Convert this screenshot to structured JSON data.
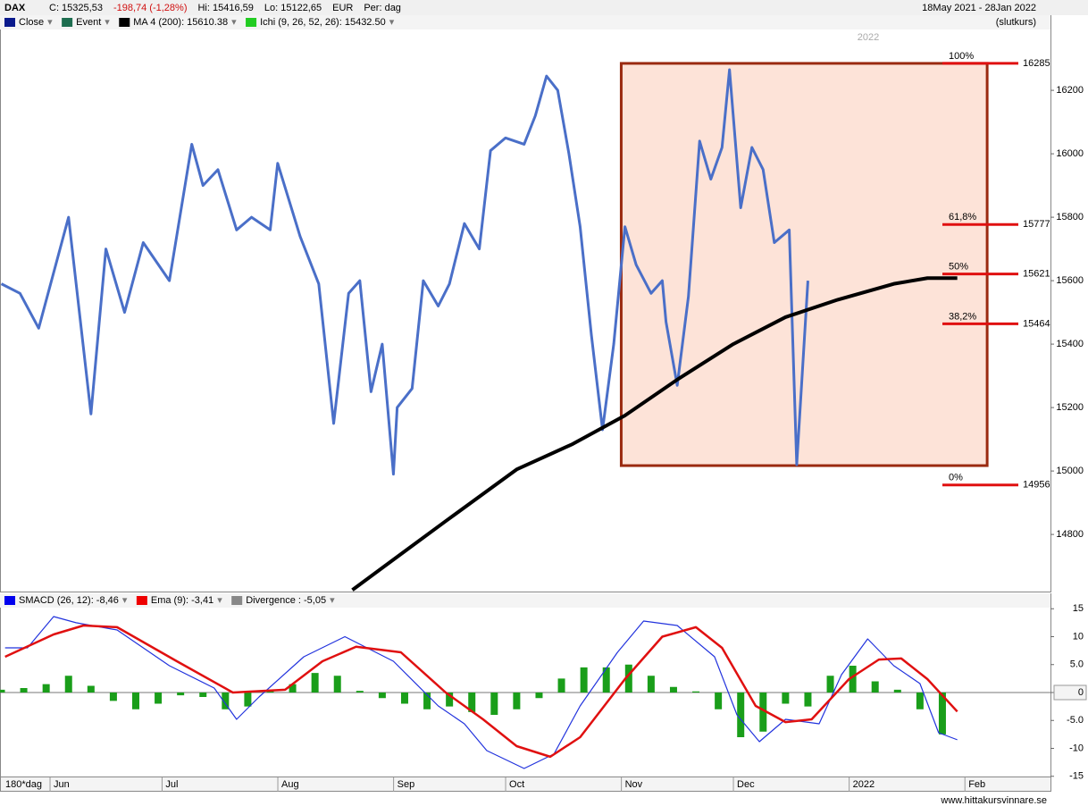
{
  "chart_data": [
    {
      "type": "line",
      "title": "DAX",
      "header_items": [
        "C: 15325,53",
        "-198,74 (-1,28%)",
        "Hi: 15416,59",
        "Lo: 15122,65",
        "EUR",
        "Per: dag"
      ],
      "date_range": "18May 2021 - 28Jan 2022",
      "price_basis": "(slutkurs)",
      "year_label": "2022",
      "legend": [
        {
          "name": "Close",
          "color": "#0a1a8c"
        },
        {
          "name": "Event",
          "color": "#1e6e50"
        },
        {
          "name": "MA 4 (200): 15610.38",
          "color": "#000000"
        },
        {
          "name": "Ichi (9, 26, 52, 26): 15432.50",
          "color": "#22cc22"
        }
      ],
      "xlim": [
        0,
        280
      ],
      "xticks": [
        {
          "value": 14,
          "label": "Jun"
        },
        {
          "value": 44,
          "label": "Jul"
        },
        {
          "value": 75,
          "label": "Aug"
        },
        {
          "value": 106,
          "label": "Sep"
        },
        {
          "value": 136,
          "label": "Oct"
        },
        {
          "value": 167,
          "label": "Nov"
        },
        {
          "value": 197,
          "label": "Dec"
        },
        {
          "value": 228,
          "label": "2022"
        },
        {
          "value": 259,
          "label": "Feb"
        }
      ],
      "period_label": "180*dag",
      "ylim": [
        14620,
        16389
      ],
      "yticks": [
        14800,
        15000,
        15200,
        15400,
        15600,
        15800,
        16000,
        16200
      ],
      "series": [
        {
          "name": "Close",
          "color": "#4a6fc8",
          "x": [
            0,
            5,
            10,
            18,
            24,
            28,
            33,
            38,
            45,
            51,
            54,
            58,
            63,
            67,
            72,
            74,
            80,
            85,
            89,
            93,
            96,
            99,
            102,
            105,
            106,
            110,
            113,
            117,
            120,
            124,
            128,
            131,
            135,
            140,
            143,
            146,
            149,
            152,
            155,
            158,
            161,
            164,
            167,
            170,
            174,
            177,
            178,
            181,
            184,
            187,
            190,
            193,
            195,
            198,
            201,
            204,
            207,
            211,
            213,
            216
          ],
          "values": [
            15590,
            15560,
            15450,
            15800,
            15180,
            15700,
            15500,
            15720,
            15600,
            16030,
            15900,
            15950,
            15760,
            15800,
            15760,
            15970,
            15740,
            15590,
            15150,
            15560,
            15600,
            15250,
            15400,
            14990,
            15200,
            15260,
            15600,
            15520,
            15590,
            15780,
            15700,
            16010,
            16050,
            16030,
            16120,
            16245,
            16200,
            16000,
            15770,
            15430,
            15130,
            15400,
            15770,
            15650,
            15560,
            15600,
            15470,
            15270,
            15550,
            16040,
            15920,
            16020,
            16265,
            15830,
            16020,
            15950,
            15720,
            15760,
            15020,
            15600
          ]
        },
        {
          "name": "MA 4 (200): 15610.38",
          "color": "#000000",
          "x": [
            94,
            107,
            119,
            138,
            153,
            167,
            181,
            196,
            210,
            224,
            239,
            248,
            256
          ],
          "values": [
            14625,
            14738,
            14842,
            15005,
            15085,
            15175,
            15288,
            15400,
            15485,
            15540,
            15590,
            15608,
            15608
          ]
        }
      ],
      "fib_box": {
        "x": [
          166,
          264
        ],
        "top": 16285,
        "bottom": 15017,
        "color": "#9a2a10",
        "fill": "#fde3d8"
      },
      "fib_levels": [
        {
          "label": "100%",
          "value": 16285
        },
        {
          "label": "61,8%",
          "value": 15777
        },
        {
          "label": "50%",
          "value": 15621
        },
        {
          "label": "38,2%",
          "value": 15464
        },
        {
          "label": "0%",
          "value": 14956
        }
      ],
      "fib_color": "#e01010"
    },
    {
      "type": "line",
      "legend": [
        {
          "name": "SMACD (26, 12): -8,46",
          "color": "#0000ee"
        },
        {
          "name": "Ema (9): -3,41",
          "color": "#ee0000"
        },
        {
          "name": "Divergence : -5,05",
          "color": "#888888"
        }
      ],
      "ylim": [
        -17.6,
        15.2
      ],
      "yticks": [
        15,
        10,
        {
          "value": 5,
          "label": "5.0"
        },
        0,
        {
          "value": -5,
          "label": "-5.0"
        },
        -10,
        -15
      ],
      "series": [
        {
          "name": "SMACD (26, 12): -8,46",
          "color": "#2233dd",
          "x": [
            1,
            7,
            14,
            20,
            31,
            45,
            57,
            63,
            69,
            81,
            92,
            105,
            117,
            124,
            130,
            140,
            148,
            155,
            165,
            172,
            181,
            191,
            197,
            203,
            210,
            219,
            225,
            232,
            239,
            246,
            251,
            256
          ],
          "values": [
            8,
            8,
            13.6,
            12.5,
            11.2,
            4.8,
            0.8,
            -4.8,
            -0.8,
            6.4,
            10,
            5.6,
            -2.4,
            -5.6,
            -10.4,
            -13.6,
            -11,
            -2.4,
            7.2,
            12.8,
            12,
            6.4,
            -4,
            -8.8,
            -4.8,
            -5.6,
            3.2,
            9.6,
            4.8,
            1.6,
            -7.2,
            -8.46
          ]
        },
        {
          "name": "Ema (9): -3,41",
          "color": "#e01010",
          "x": [
            1,
            14,
            22,
            31,
            47,
            62,
            76,
            86,
            95,
            107,
            119,
            129,
            138,
            147,
            155,
            167,
            177,
            186,
            193,
            202,
            210,
            217,
            227,
            235,
            241,
            248,
            256
          ],
          "values": [
            6.4,
            10.4,
            12,
            11.7,
            5.6,
            0,
            0.5,
            5.6,
            8.2,
            7.2,
            0,
            -4.8,
            -9.6,
            -11.5,
            -8,
            2.4,
            10,
            11.7,
            8,
            -2.4,
            -5.3,
            -4.8,
            2.4,
            5.9,
            6.1,
            2.4,
            -3.41
          ]
        }
      ],
      "histogram": {
        "name": "Divergence : -5,05",
        "color": "#1a9e1a",
        "x": [
          0,
          6,
          12,
          18,
          24,
          30,
          36,
          42,
          48,
          54,
          60,
          66,
          72,
          78,
          84,
          90,
          96,
          102,
          108,
          114,
          120,
          126,
          132,
          138,
          144,
          150,
          156,
          162,
          168,
          174,
          180,
          186,
          192,
          198,
          204,
          210,
          216,
          222,
          228,
          234,
          240,
          246,
          252
        ],
        "values": [
          0.5,
          0.8,
          1.5,
          3,
          1.2,
          -1.5,
          -3,
          -2,
          -0.5,
          -0.8,
          -3,
          -2.5,
          0.5,
          1.5,
          3.5,
          3,
          0.3,
          -1,
          -2,
          -3,
          -2.5,
          -3.5,
          -4,
          -3,
          -1,
          2.5,
          4.5,
          4.5,
          5,
          3,
          1,
          0.2,
          -3,
          -8,
          -7,
          -2,
          -2.5,
          3,
          4.8,
          2,
          0.5,
          -3,
          -7.5
        ]
      },
      "footer": "www.hittakursvinnare.se"
    }
  ]
}
